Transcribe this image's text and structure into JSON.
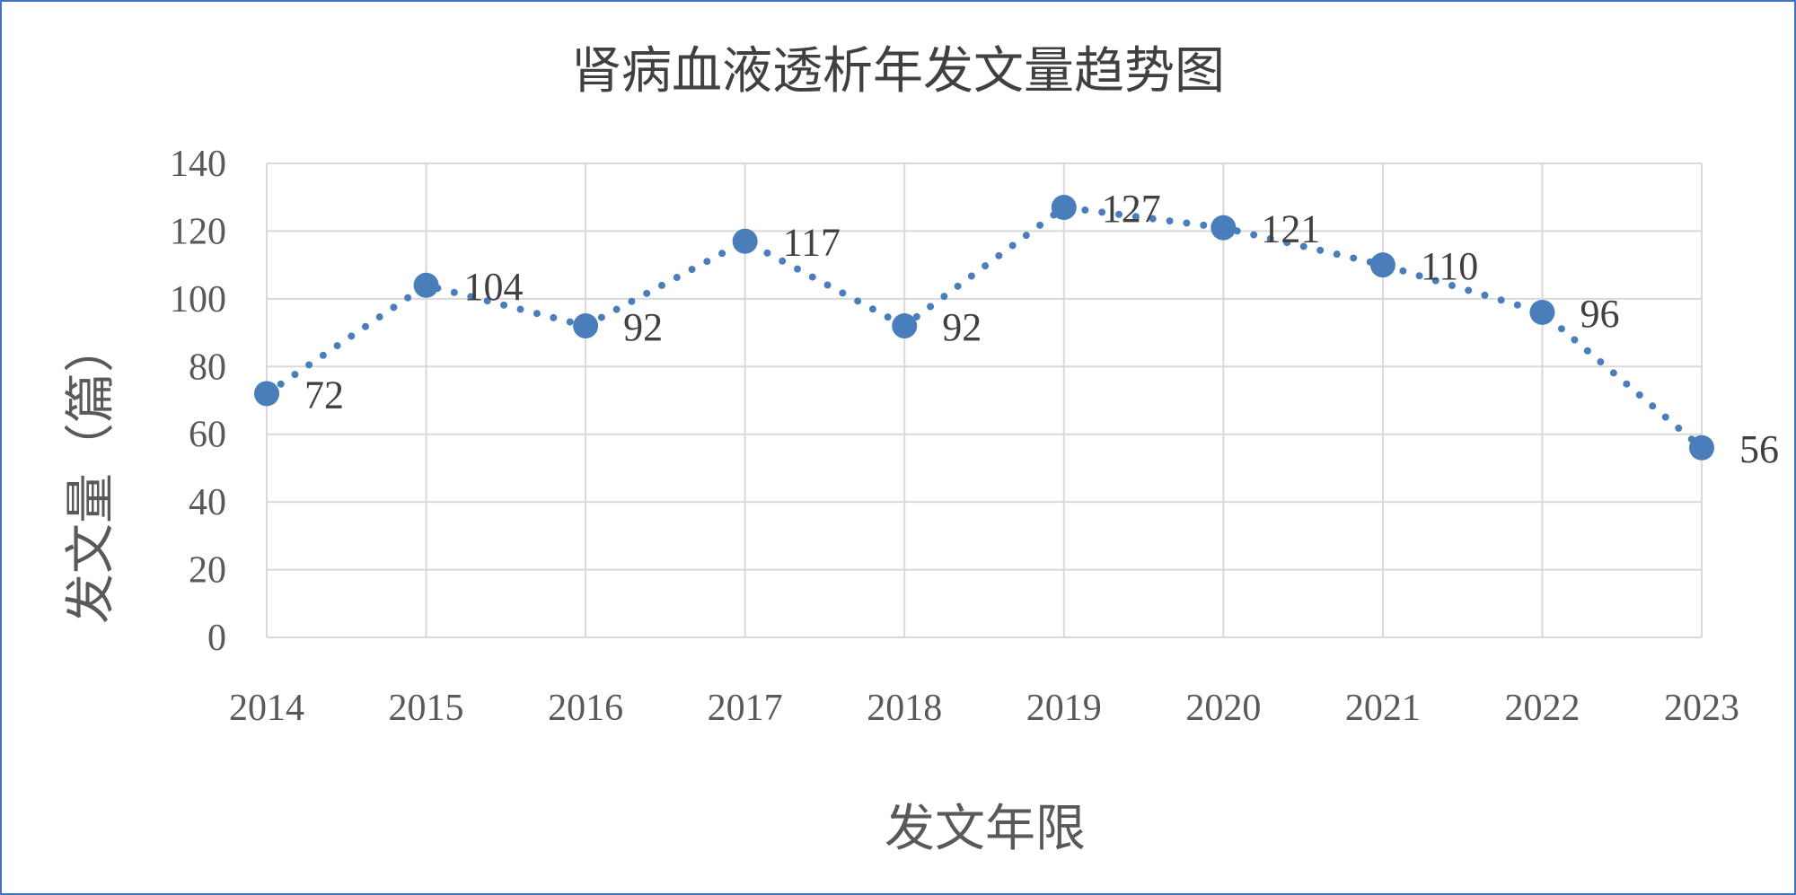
{
  "chart_data": {
    "type": "line",
    "title": "肾病血液透析年发文量趋势图",
    "xlabel": "发文年限",
    "ylabel": "发文量（篇）",
    "categories": [
      "2014",
      "2015",
      "2016",
      "2017",
      "2018",
      "2019",
      "2020",
      "2021",
      "2022",
      "2023"
    ],
    "series": [
      {
        "values": [
          72,
          104,
          92,
          117,
          92,
          127,
          121,
          110,
          96,
          56
        ]
      }
    ],
    "ylim": [
      0,
      140
    ],
    "yticks": [
      0,
      20,
      40,
      60,
      80,
      100,
      120,
      140
    ],
    "grid": true,
    "data_labels": true,
    "line_style": "dotted",
    "color": "#4A7EBB",
    "frame_color": "#4472C4"
  }
}
